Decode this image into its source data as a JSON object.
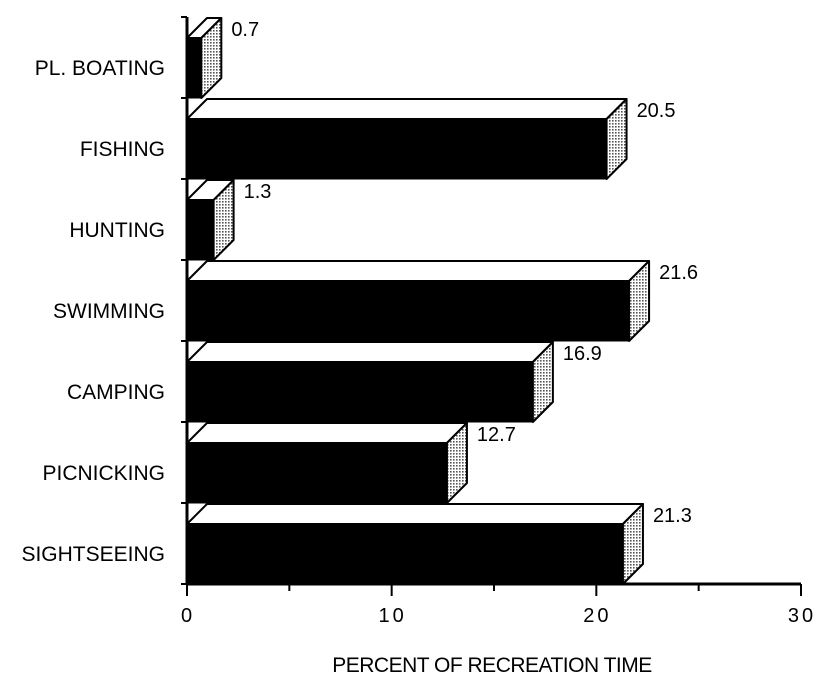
{
  "chart_data": {
    "type": "bar",
    "orientation": "horizontal",
    "style": "3d",
    "categories": [
      "PL. BOATING",
      "FISHING",
      "HUNTING",
      "SWIMMING",
      "CAMPING",
      "PICNICKING",
      "SIGHTSEEING"
    ],
    "values": [
      0.7,
      20.5,
      1.3,
      21.6,
      16.9,
      12.7,
      21.3
    ],
    "value_labels": [
      "0.7",
      "20.5",
      "1.3",
      "21.6",
      "16.9",
      "12.7",
      "21.3"
    ],
    "xlabel": "PERCENT OF RECREATION TIME",
    "ylabel": "",
    "xlim": [
      0,
      30
    ],
    "x_ticks": [
      0,
      10,
      20,
      30
    ],
    "x_tick_labels": [
      "0",
      "10",
      "20",
      "30"
    ],
    "grid": false,
    "colors": {
      "front": "#000000",
      "top": "#ffffff",
      "side": "#b0b0b0",
      "outline": "#000000"
    }
  }
}
